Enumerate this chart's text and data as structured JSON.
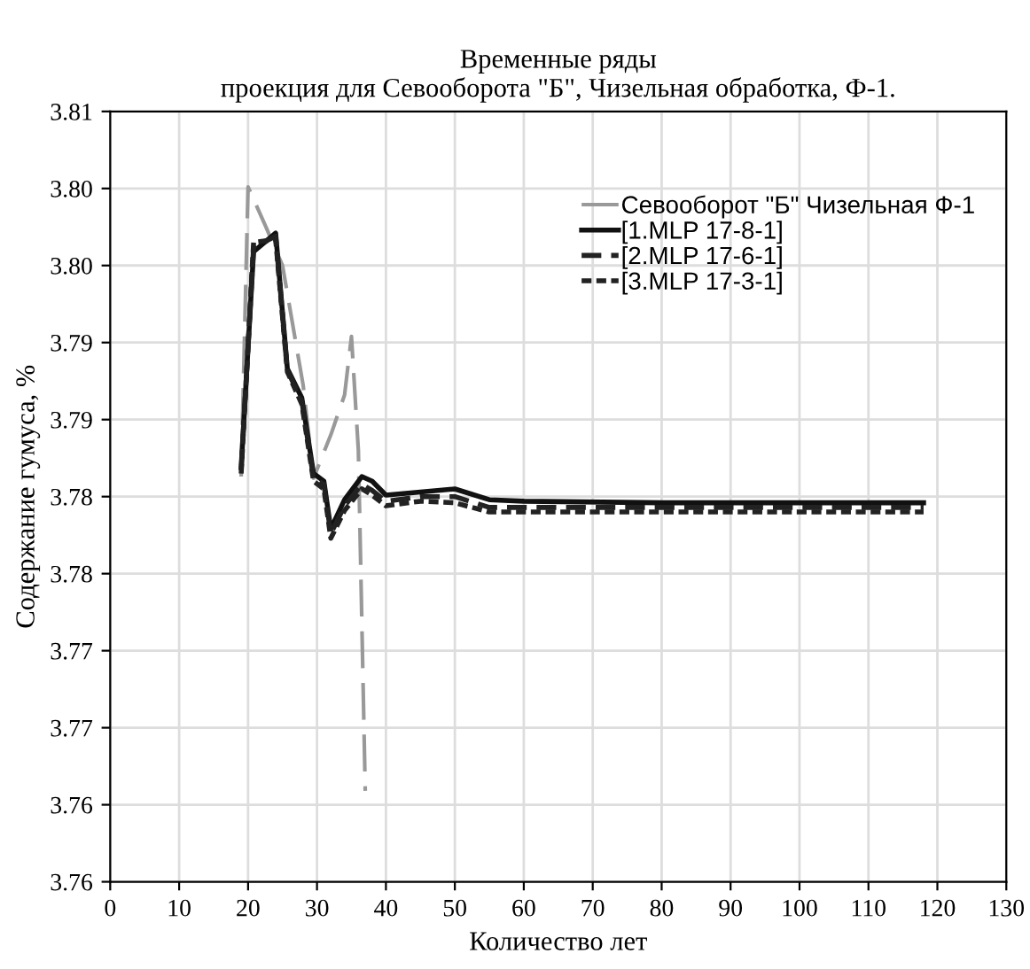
{
  "chart_data": {
    "type": "line",
    "title": "Временные ряды\nпроекция для Севооборота \"Б\", Чизельная обработка, Ф-1.",
    "xlabel": "Количество лет",
    "ylabel": "Содержание гумуса, %",
    "xlim": [
      0,
      130
    ],
    "xticks": [
      0,
      10,
      20,
      30,
      40,
      50,
      60,
      70,
      80,
      90,
      100,
      110,
      120,
      130
    ],
    "ylim": [
      3.76,
      3.81
    ],
    "yticks": [
      {
        "value": 3.76,
        "label": "3.76"
      },
      {
        "value": 3.765,
        "label": "3.76"
      },
      {
        "value": 3.77,
        "label": "3.77"
      },
      {
        "value": 3.775,
        "label": "3.77"
      },
      {
        "value": 3.78,
        "label": "3.78"
      },
      {
        "value": 3.785,
        "label": "3.78"
      },
      {
        "value": 3.79,
        "label": "3.79"
      },
      {
        "value": 3.795,
        "label": "3.79"
      },
      {
        "value": 3.8,
        "label": "3.80"
      },
      {
        "value": 3.805,
        "label": "3.80"
      },
      {
        "value": 3.81,
        "label": "3.81"
      }
    ],
    "grid": true,
    "legend": "top right",
    "series": [
      {
        "name": "Севооборот \"Б\" Чизельная Ф-1",
        "color": "#999999",
        "line_style": "longdash",
        "x": [
          19,
          20,
          22.5,
          25,
          28,
          29.5,
          32,
          34,
          35,
          36,
          37
        ],
        "values": [
          3.7863,
          3.8051,
          3.8026,
          3.8,
          3.7922,
          3.7862,
          3.789,
          3.7916,
          3.7954,
          3.788,
          3.7659
        ]
      },
      {
        "name": "[1.MLP 17-8-1]",
        "color": "#111111",
        "line_style": "solid",
        "x": [
          19,
          20.8,
          24,
          25.7,
          27.8,
          29.5,
          31,
          32,
          34,
          36.5,
          38,
          40,
          45,
          50,
          55,
          60,
          80,
          100,
          118
        ],
        "values": [
          3.7869,
          3.8009,
          3.8021,
          3.7933,
          3.7914,
          3.7865,
          3.786,
          3.7829,
          3.7848,
          3.7863,
          3.786,
          3.7851,
          3.7853,
          3.7855,
          3.7848,
          3.7847,
          3.7846,
          3.7846,
          3.7846
        ]
      },
      {
        "name": "[2.MLP 17-6-1]",
        "color": "#222222",
        "line_style": "dashed",
        "x": [
          19,
          20.8,
          24,
          25.7,
          27.8,
          29.5,
          31,
          32,
          34,
          36.5,
          38,
          40,
          45,
          50,
          55,
          60,
          80,
          100,
          118
        ],
        "values": [
          3.7867,
          3.8012,
          3.8019,
          3.7932,
          3.7912,
          3.7862,
          3.7858,
          3.7826,
          3.7844,
          3.7858,
          3.7854,
          3.7847,
          3.785,
          3.785,
          3.7843,
          3.7843,
          3.7843,
          3.7843,
          3.7843
        ]
      },
      {
        "name": "[3.MLP 17-3-1]",
        "color": "#222222",
        "line_style": "dotted",
        "x": [
          19,
          20.8,
          24,
          25.7,
          27.8,
          29.5,
          31,
          32,
          34,
          36.5,
          38,
          40,
          45,
          50,
          55,
          60,
          80,
          100,
          118
        ],
        "values": [
          3.7865,
          3.8015,
          3.8017,
          3.7931,
          3.791,
          3.786,
          3.7855,
          3.7823,
          3.7841,
          3.7855,
          3.7851,
          3.7844,
          3.7847,
          3.7846,
          3.784,
          3.784,
          3.784,
          3.784,
          3.784
        ]
      }
    ]
  }
}
